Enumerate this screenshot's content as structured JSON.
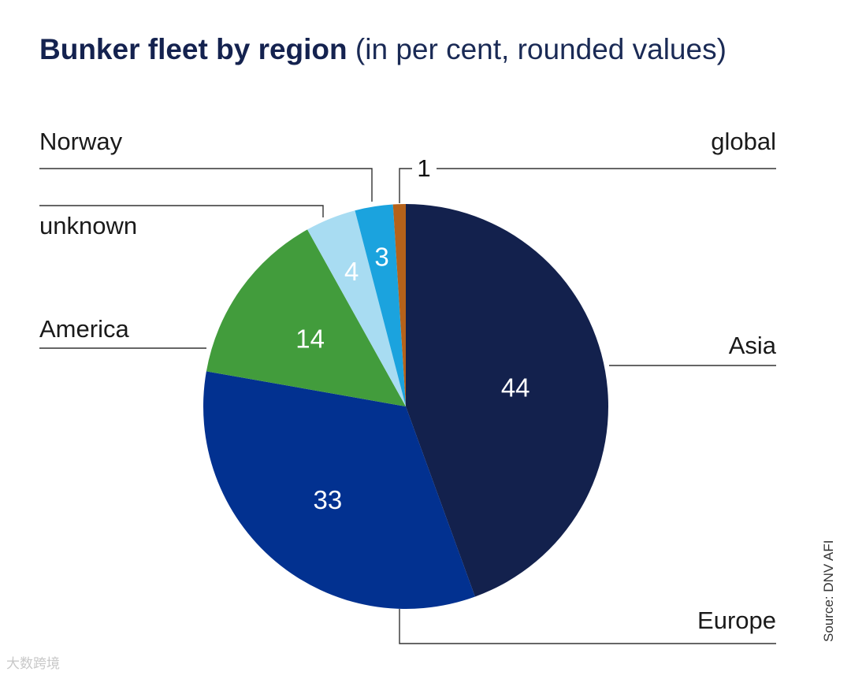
{
  "title": {
    "bold": "Bunker fleet by region",
    "rest": "(in per cent, rounded values)"
  },
  "source": "Source: DNV AFI",
  "watermark": "大数跨境",
  "chart_data": {
    "type": "pie",
    "title": "Bunker fleet by region (in per cent, rounded values)",
    "slices": [
      {
        "label": "Asia",
        "value": 44,
        "color": "#13214d",
        "value_label": "44"
      },
      {
        "label": "Europe",
        "value": 33,
        "color": "#023190",
        "value_label": "33"
      },
      {
        "label": "America",
        "value": 14,
        "color": "#429c3c",
        "value_label": "14"
      },
      {
        "label": "unknown",
        "value": 4,
        "color": "#a8dcf2",
        "value_label": "4"
      },
      {
        "label": "Norway",
        "value": 3,
        "color": "#1ba3de",
        "value_label": "3"
      },
      {
        "label": "global",
        "value": 1,
        "color": "#b5621a",
        "value_label": "1"
      }
    ],
    "direction": "clockwise from top",
    "legend": "leader-line labels"
  }
}
